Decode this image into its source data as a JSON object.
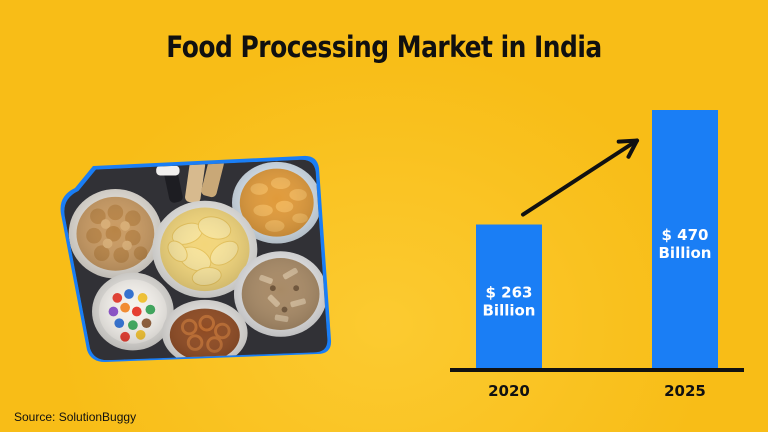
{
  "chart_data": {
    "type": "bar",
    "title": "Food Processing Market in India",
    "categories": [
      "2020",
      "2025"
    ],
    "values": [
      263,
      470
    ],
    "value_labels": [
      "$ 263\nBillion",
      "$ 470\nBillion"
    ],
    "unit": "Billion USD",
    "ylim": [
      0,
      470
    ],
    "grid": false,
    "legend": "none",
    "trend_arrow": true
  },
  "source": "Source: SolutionBuggy",
  "colors": {
    "background": "#f8bd17",
    "bar": "#1a7ef5",
    "bar_label": "#ffffff",
    "axis": "#111111",
    "frame": "#1a7ef5"
  },
  "image": {
    "subject": "snack-bowls-photo"
  }
}
